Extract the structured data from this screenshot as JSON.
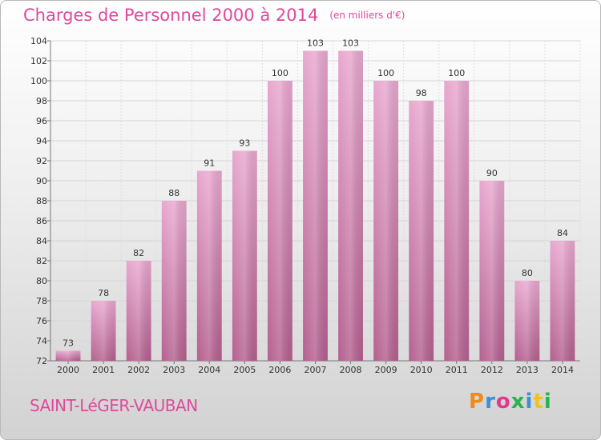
{
  "header": {
    "title": "Charges de Personnel 2000 à 2014",
    "subtitle": "(en milliers d'€)"
  },
  "footer": {
    "place": "SAINT-LéGER-VAUBAN",
    "logo": "Proxiti",
    "logo_colors": [
      "#f08a1c",
      "#3b8fd6",
      "#e03a8c",
      "#2bb24c",
      "#3b8fd6",
      "#f0c419",
      "#2bb24c"
    ]
  },
  "chart_data": {
    "type": "bar",
    "title": "Charges de Personnel 2000 à 2014",
    "subtitle": "(en milliers d'€)",
    "categories": [
      "2000",
      "2001",
      "2002",
      "2003",
      "2004",
      "2005",
      "2006",
      "2007",
      "2008",
      "2009",
      "2010",
      "2011",
      "2012",
      "2013",
      "2014"
    ],
    "values": [
      73,
      78,
      82,
      88,
      91,
      93,
      100,
      103,
      103,
      100,
      98,
      100,
      90,
      80,
      84
    ],
    "ylim": [
      72,
      104
    ],
    "yticks": [
      72,
      74,
      76,
      78,
      80,
      82,
      84,
      86,
      88,
      90,
      92,
      94,
      96,
      98,
      100,
      102,
      104
    ],
    "grid": true,
    "bar_color": "#d97fb6"
  }
}
